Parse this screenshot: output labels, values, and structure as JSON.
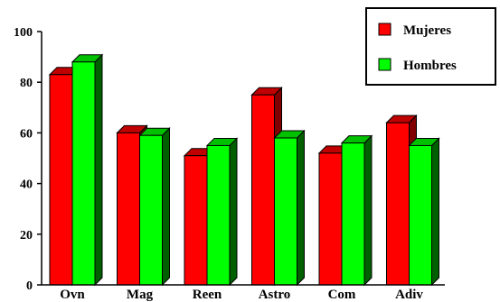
{
  "chart_data": {
    "type": "bar",
    "categories": [
      "Ovn",
      "Mag",
      "Reen",
      "Astro",
      "Com",
      "Adiv"
    ],
    "series": [
      {
        "name": "Mujeres",
        "values": [
          83,
          60,
          51,
          75,
          52,
          64
        ],
        "color": "#ff0000",
        "top_color": "#c00000",
        "side_color": "#800000"
      },
      {
        "name": "Hombres",
        "values": [
          88,
          59,
          55,
          58,
          56,
          55
        ],
        "color": "#00ff00",
        "top_color": "#00c000",
        "side_color": "#006000"
      }
    ],
    "yticks": [
      "0",
      "20",
      "40",
      "60",
      "80",
      "100"
    ],
    "ylim": [
      0,
      100
    ],
    "title": "",
    "xlabel": "",
    "ylabel": "",
    "grid": false,
    "legend_position": "top-right",
    "bar_style": "3d"
  }
}
